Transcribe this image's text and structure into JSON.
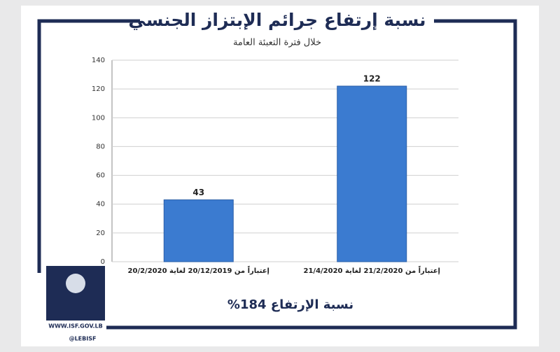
{
  "chart_data": {
    "type": "bar",
    "title": "نسبة إرتفاع جرائم الإبتزاز الجنسي",
    "subtitle": "خلال فترة التعبئة العامة",
    "categories": [
      "إعتباراً من 20/12/2019 لغاية 20/2/2020",
      "إعتباراً من 21/2/2020 لغاية 21/4/2020"
    ],
    "values": [
      43,
      122
    ],
    "color": "#3b7bd0",
    "ylim": [
      0,
      140
    ],
    "yticks": [
      0,
      20,
      40,
      60,
      80,
      100,
      120,
      140
    ],
    "grid": true,
    "annotation": "نسبة الإرتفاع 184%"
  },
  "footer": {
    "website": "WWW.ISF.GOV.LB",
    "handle": "@LEBISF"
  }
}
